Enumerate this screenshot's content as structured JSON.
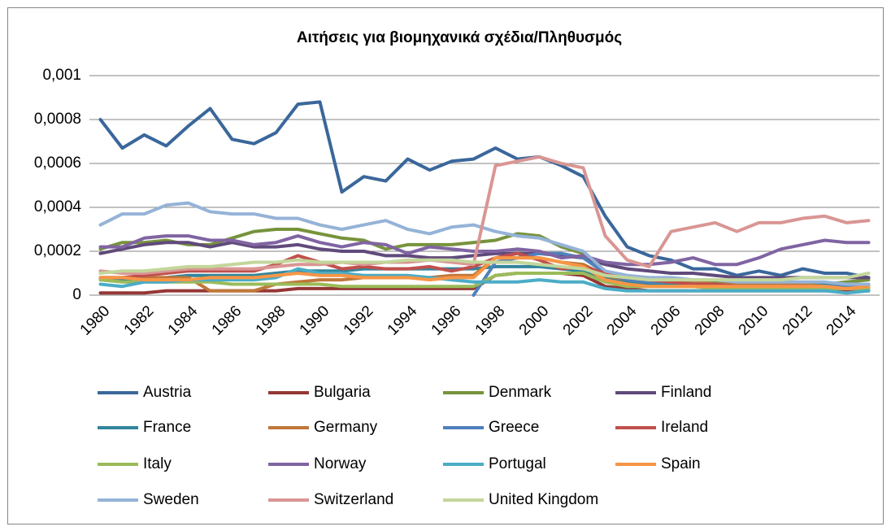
{
  "chart_data": {
    "type": "line",
    "title": "Αιτήσεις για βιομηχανικά σχέδια/Πληθυσμός",
    "categories": [
      "1980",
      null,
      "1982",
      null,
      "1984",
      null,
      "1986",
      null,
      "1988",
      null,
      "1990",
      null,
      "1992",
      null,
      "1994",
      null,
      "1996",
      null,
      "1998",
      null,
      "2000",
      null,
      "2002",
      null,
      "2004",
      null,
      "2006",
      null,
      "2008",
      null,
      "2010",
      null,
      "2012",
      null,
      "2014",
      null
    ],
    "ylim": [
      0,
      0.001
    ],
    "yticks": [
      0,
      {
        "value": 0.0002,
        "label": "0,0002"
      },
      {
        "value": 0.0004,
        "label": "0,0004"
      },
      {
        "value": 0.0006,
        "label": "0,0006"
      },
      {
        "value": 0.0008,
        "label": "0,0008"
      },
      {
        "value": 0.001,
        "label": "0,001"
      }
    ],
    "grid": true,
    "legend": "bottom",
    "series": [
      {
        "name": "Austria",
        "color": "#3a679b",
        "values": [
          0.0008,
          0.00067,
          0.00073,
          0.00068,
          0.00077,
          0.00085,
          0.00071,
          0.00069,
          0.00074,
          0.00087,
          0.00088,
          0.00047,
          0.00054,
          0.00052,
          0.00062,
          0.00057,
          0.00061,
          0.00062,
          0.00067,
          0.00062,
          0.00063,
          0.00059,
          0.00054,
          0.00036,
          0.00022,
          0.00018,
          0.00016,
          0.00012,
          0.00012,
          9e-05,
          0.00011,
          9e-05,
          0.00012,
          0.0001,
          0.0001,
          8e-05
        ]
      },
      {
        "name": "Bulgaria",
        "color": "#953735",
        "values": [
          1e-05,
          1e-05,
          1e-05,
          2e-05,
          2e-05,
          2e-05,
          2e-05,
          2e-05,
          2e-05,
          3e-05,
          3e-05,
          3e-05,
          3e-05,
          3e-05,
          3e-05,
          3e-05,
          3e-05,
          3e-05,
          9e-05,
          0.0001,
          0.0001,
          0.0001,
          9e-05,
          4e-05,
          3e-05,
          2e-05,
          2e-05,
          2e-05,
          2e-05,
          2e-05,
          2e-05,
          2e-05,
          2e-05,
          2e-05,
          2e-05,
          2e-05
        ]
      },
      {
        "name": "Denmark",
        "color": "#77933c",
        "values": [
          0.00021,
          0.00024,
          0.00024,
          0.00025,
          0.00023,
          0.00023,
          0.00026,
          0.00029,
          0.0003,
          0.0003,
          0.00028,
          0.00026,
          0.00025,
          0.00021,
          0.00023,
          0.00023,
          0.00023,
          0.00024,
          0.00025,
          0.00028,
          0.00027,
          0.00022,
          0.00019,
          0.0001,
          7e-05,
          6e-05,
          6e-05,
          6e-05,
          6e-05,
          5e-05,
          5e-05,
          5e-05,
          5e-05,
          5e-05,
          6e-05,
          7e-05
        ]
      },
      {
        "name": "Finland",
        "color": "#604a7b",
        "values": [
          0.00019,
          0.00021,
          0.00023,
          0.00024,
          0.00024,
          0.00022,
          0.00024,
          0.00022,
          0.00022,
          0.00023,
          0.00021,
          0.0002,
          0.0002,
          0.00018,
          0.00018,
          0.00017,
          0.00017,
          0.00018,
          0.00019,
          0.00019,
          0.00019,
          0.00018,
          0.00017,
          0.00014,
          0.00012,
          0.00011,
          0.0001,
          0.0001,
          9e-05,
          8e-05,
          8e-05,
          8e-05,
          8e-05,
          8e-05,
          8e-05,
          8e-05
        ]
      },
      {
        "name": "France",
        "color": "#31859c",
        "values": [
          7e-05,
          7e-05,
          8e-05,
          8e-05,
          9e-05,
          9e-05,
          9e-05,
          9e-05,
          0.0001,
          0.00011,
          0.00011,
          0.00011,
          0.00012,
          0.00012,
          0.00012,
          0.00012,
          0.00012,
          0.00012,
          0.00013,
          0.00013,
          0.00013,
          0.00012,
          0.00011,
          8e-05,
          6e-05,
          5e-05,
          5e-05,
          5e-05,
          5e-05,
          5e-05,
          5e-05,
          5e-05,
          5e-05,
          5e-05,
          5e-05,
          5e-05
        ]
      },
      {
        "name": "Germany",
        "color": "#c0773a",
        "values": [
          8e-05,
          8e-05,
          8e-05,
          8e-05,
          8e-05,
          2e-05,
          2e-05,
          2e-05,
          5e-05,
          6e-05,
          7e-05,
          7e-05,
          8e-05,
          8e-05,
          8e-05,
          8e-05,
          9e-05,
          9e-05,
          0.00017,
          0.00017,
          0.00017,
          0.00015,
          0.00014,
          9e-05,
          7e-05,
          6e-05,
          6e-05,
          6e-05,
          5e-05,
          5e-05,
          5e-05,
          5e-05,
          5e-05,
          4e-05,
          4e-05,
          4e-05
        ]
      },
      {
        "name": "Greece",
        "color": "#4f81bd",
        "values": [
          null,
          null,
          null,
          null,
          null,
          null,
          null,
          null,
          null,
          null,
          null,
          null,
          null,
          null,
          null,
          null,
          null,
          0,
          0.00015,
          0.00017,
          0.00019,
          0.00019,
          0.00017,
          0.0001,
          7e-05,
          6e-05,
          6e-05,
          5e-05,
          5e-05,
          4e-05,
          4e-05,
          4e-05,
          4e-05,
          4e-05,
          4e-05,
          4e-05
        ]
      },
      {
        "name": "Ireland",
        "color": "#c0504d",
        "values": [
          8e-05,
          8e-05,
          9e-05,
          0.0001,
          0.00011,
          0.00011,
          0.00011,
          0.00011,
          0.00014,
          0.00018,
          0.00015,
          0.00012,
          0.00013,
          0.00012,
          0.00012,
          0.00013,
          0.00011,
          0.00013,
          0.00017,
          0.00019,
          0.00016,
          0.00012,
          0.00013,
          0.0001,
          8e-05,
          7e-05,
          6e-05,
          5e-05,
          5e-05,
          4e-05,
          4e-05,
          4e-05,
          4e-05,
          3e-05,
          3e-05,
          2e-05
        ]
      },
      {
        "name": "Italy",
        "color": "#9bbb59",
        "values": [
          7e-05,
          6e-05,
          6e-05,
          6e-05,
          6e-05,
          6e-05,
          5e-05,
          5e-05,
          5e-05,
          5e-05,
          5e-05,
          4e-05,
          4e-05,
          4e-05,
          4e-05,
          4e-05,
          4e-05,
          4e-05,
          9e-05,
          0.0001,
          0.0001,
          0.0001,
          0.0001,
          6e-05,
          4e-05,
          4e-05,
          4e-05,
          4e-05,
          3e-05,
          3e-05,
          3e-05,
          3e-05,
          3e-05,
          3e-05,
          3e-05,
          3e-05
        ]
      },
      {
        "name": "Norway",
        "color": "#8064a2",
        "values": [
          0.00022,
          0.00022,
          0.00026,
          0.00027,
          0.00027,
          0.00025,
          0.00025,
          0.00023,
          0.00024,
          0.00027,
          0.00024,
          0.00022,
          0.00024,
          0.00023,
          0.00019,
          0.00022,
          0.00021,
          0.0002,
          0.0002,
          0.00021,
          0.0002,
          0.00017,
          0.00018,
          0.00015,
          0.00014,
          0.00014,
          0.00015,
          0.00017,
          0.00014,
          0.00014,
          0.00017,
          0.00021,
          0.00023,
          0.00025,
          0.00024,
          0.00024
        ]
      },
      {
        "name": "Portugal",
        "color": "#4bacc6",
        "values": [
          5e-05,
          4e-05,
          6e-05,
          6e-05,
          7e-05,
          7e-05,
          7e-05,
          7e-05,
          8e-05,
          0.00012,
          0.0001,
          0.0001,
          9e-05,
          9e-05,
          9e-05,
          8e-05,
          7e-05,
          6e-05,
          6e-05,
          6e-05,
          7e-05,
          6e-05,
          6e-05,
          3e-05,
          2e-05,
          2e-05,
          2e-05,
          2e-05,
          2e-05,
          2e-05,
          2e-05,
          2e-05,
          2e-05,
          2e-05,
          1e-05,
          2e-05
        ]
      },
      {
        "name": "Spain",
        "color": "#f79646",
        "values": [
          8e-05,
          8e-05,
          7e-05,
          7e-05,
          7e-05,
          8e-05,
          8e-05,
          8e-05,
          9e-05,
          0.0001,
          9e-05,
          9e-05,
          8e-05,
          8e-05,
          8e-05,
          7e-05,
          8e-05,
          8e-05,
          0.00017,
          0.00017,
          0.00017,
          0.00015,
          0.00013,
          7e-05,
          5e-05,
          4e-05,
          4e-05,
          4e-05,
          4e-05,
          4e-05,
          4e-05,
          4e-05,
          4e-05,
          4e-05,
          3e-05,
          4e-05
        ]
      },
      {
        "name": "Sweden",
        "color": "#95b3d7",
        "values": [
          0.00032,
          0.00037,
          0.00037,
          0.00041,
          0.00042,
          0.00038,
          0.00037,
          0.00037,
          0.00035,
          0.00035,
          0.00032,
          0.0003,
          0.00032,
          0.00034,
          0.0003,
          0.00028,
          0.00031,
          0.00032,
          0.00029,
          0.00027,
          0.00026,
          0.00023,
          0.0002,
          0.00011,
          9e-05,
          8e-05,
          8e-05,
          7e-05,
          7e-05,
          6e-05,
          6e-05,
          6e-05,
          6e-05,
          6e-05,
          5e-05,
          5e-05
        ]
      },
      {
        "name": "Switzerland",
        "color": "#d99694",
        "values": [
          0.00011,
          0.0001,
          0.0001,
          0.00011,
          0.00012,
          0.00012,
          0.00012,
          0.00012,
          0.00013,
          0.00014,
          0.00014,
          0.00015,
          0.00014,
          0.00015,
          0.00015,
          0.00016,
          0.00015,
          0.00014,
          0.00059,
          0.00061,
          0.00063,
          0.0006,
          0.00058,
          0.00027,
          0.00016,
          0.00013,
          0.00029,
          0.00031,
          0.00033,
          0.00029,
          0.00033,
          0.00033,
          0.00035,
          0.00036,
          0.00033,
          0.00034
        ]
      },
      {
        "name": "United Kingdom",
        "color": "#c3d69b",
        "values": [
          0.0001,
          0.00011,
          0.00011,
          0.00012,
          0.00013,
          0.00013,
          0.00014,
          0.00015,
          0.00015,
          0.00016,
          0.00015,
          0.00015,
          0.00015,
          0.00015,
          0.00016,
          0.00016,
          0.00016,
          0.00015,
          0.00015,
          0.00015,
          0.00014,
          0.00013,
          0.00012,
          9e-05,
          8e-05,
          7e-05,
          7e-05,
          7e-05,
          7e-05,
          7e-05,
          7e-05,
          7e-05,
          8e-05,
          8e-05,
          8e-05,
          0.0001
        ]
      }
    ]
  }
}
